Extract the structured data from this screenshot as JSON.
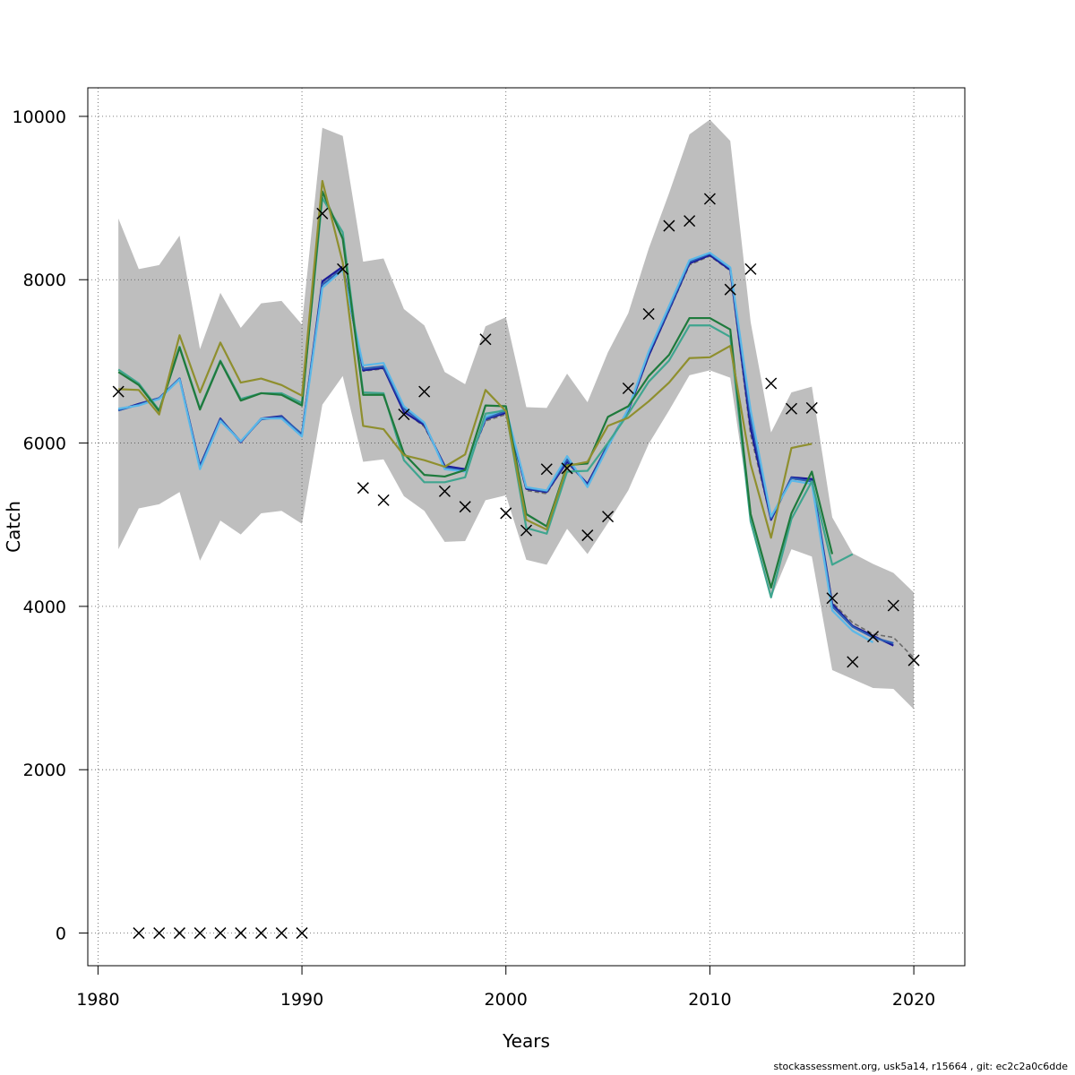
{
  "chart_data": {
    "type": "line",
    "xlabel": "Years",
    "ylabel": "Catch",
    "xlim": [
      1979.5,
      2022.5
    ],
    "ylim": [
      -400,
      10350
    ],
    "xticks": [
      1980,
      1990,
      2000,
      2010,
      2020
    ],
    "yticks": [
      0,
      2000,
      4000,
      6000,
      8000,
      10000
    ],
    "grid": true,
    "band": {
      "color": "#bebebe",
      "x": [
        1981,
        1982,
        1983,
        1984,
        1985,
        1986,
        1987,
        1988,
        1989,
        1990,
        1991,
        1992,
        1993,
        1994,
        1995,
        1996,
        1997,
        1998,
        1999,
        2000,
        2001,
        2002,
        2003,
        2004,
        2005,
        2006,
        2007,
        2008,
        2009,
        2010,
        2011,
        2012,
        2013,
        2014,
        2015,
        2016,
        2017,
        2018,
        2019,
        2020
      ],
      "upper": [
        8750,
        8130,
        8180,
        8540,
        7150,
        7840,
        7410,
        7710,
        7740,
        7450,
        9860,
        9760,
        8220,
        8260,
        7640,
        7440,
        6870,
        6720,
        7430,
        7540,
        6440,
        6430,
        6850,
        6500,
        7110,
        7590,
        8380,
        9060,
        9780,
        9960,
        9700,
        7480,
        6130,
        6620,
        6690,
        5090,
        4650,
        4520,
        4410,
        4170
      ],
      "lower": [
        4700,
        5200,
        5250,
        5400,
        4560,
        5050,
        4880,
        5140,
        5170,
        5010,
        6470,
        6820,
        5770,
        5800,
        5350,
        5170,
        4790,
        4800,
        5300,
        5360,
        4570,
        4510,
        4950,
        4640,
        5020,
        5420,
        5990,
        6400,
        6830,
        6890,
        6800,
        5110,
        4100,
        4700,
        4610,
        3220,
        3110,
        3000,
        2990,
        2740
      ]
    },
    "series": [
      {
        "color": "#6b6b6b",
        "dashed": true,
        "x": [
          1981,
          1982,
          1983,
          1984,
          1985,
          1986,
          1987,
          1988,
          1989,
          1990,
          1991,
          1992,
          1993,
          1994,
          1995,
          1996,
          1997,
          1998,
          1999,
          2000,
          2001,
          2002,
          2003,
          2004,
          2005,
          2006,
          2007,
          2008,
          2009,
          2010,
          2011,
          2012,
          2013,
          2014,
          2015,
          2016,
          2017,
          2018,
          2019,
          2020
        ],
        "values": [
          6400,
          6480,
          6550,
          6780,
          5720,
          6290,
          6010,
          6290,
          6330,
          6100,
          7970,
          8150,
          6880,
          6910,
          6390,
          6200,
          5720,
          5670,
          6270,
          6350,
          5420,
          5380,
          5780,
          5490,
          5960,
          6390,
          7060,
          7620,
          8180,
          8290,
          8110,
          6100,
          5060,
          5560,
          5540,
          4050,
          3800,
          3660,
          3620,
          3370
        ]
      },
      {
        "color": "#1a1a99",
        "x": [
          1981,
          1982,
          1983,
          1984,
          1985,
          1986,
          1987,
          1988,
          1989,
          1990,
          1991,
          1992,
          1993,
          1994,
          1995,
          1996,
          1997,
          1998,
          1999,
          2000,
          2001,
          2002,
          2003,
          2004,
          2005,
          2006,
          2007,
          2008,
          2009,
          2010,
          2011,
          2012,
          2013,
          2014,
          2015,
          2016,
          2017,
          2018,
          2019
        ],
        "values": [
          6400,
          6480,
          6550,
          6790,
          5720,
          6300,
          6010,
          6300,
          6330,
          6100,
          7980,
          8160,
          6890,
          6920,
          6380,
          6220,
          5720,
          5680,
          6290,
          6370,
          5440,
          5400,
          5770,
          5500,
          5980,
          6400,
          7070,
          7630,
          8200,
          8300,
          8120,
          6180,
          5060,
          5580,
          5560,
          4030,
          3760,
          3640,
          3520
        ]
      },
      {
        "color": "#2c5fb5",
        "x": [
          1981,
          1982,
          1983,
          1984,
          1985,
          1986,
          1987,
          1988,
          1989,
          1990,
          1991,
          1992,
          1993,
          1994,
          1995,
          1996,
          1997,
          1998,
          1999,
          2000,
          2001,
          2002,
          2003,
          2004,
          2005,
          2006,
          2007,
          2008,
          2009,
          2010,
          2011,
          2012,
          2013,
          2014,
          2015,
          2016,
          2017,
          2018,
          2019
        ],
        "values": [
          6400,
          6470,
          6550,
          6790,
          5710,
          6290,
          6020,
          6290,
          6320,
          6110,
          7940,
          8130,
          6910,
          6940,
          6420,
          6240,
          5700,
          5660,
          6300,
          6390,
          5450,
          5410,
          5800,
          5480,
          5970,
          6410,
          7100,
          7650,
          8220,
          8320,
          8140,
          6300,
          5080,
          5570,
          5530,
          4000,
          3750,
          3620,
          3550
        ]
      },
      {
        "color": "#5bb8e8",
        "x": [
          1981,
          1982,
          1983,
          1984,
          1985,
          1986,
          1987,
          1988,
          1989,
          1990,
          1991,
          1992,
          1993,
          1994,
          1995,
          1996,
          1997,
          1998,
          1999,
          2000,
          2001,
          2002,
          2003,
          2004,
          2005,
          2006,
          2007,
          2008,
          2009,
          2010,
          2011,
          2012,
          2013,
          2014,
          2015,
          2016,
          2017,
          2018
        ],
        "values": [
          6420,
          6460,
          6540,
          6780,
          5680,
          6270,
          6020,
          6300,
          6300,
          6080,
          7900,
          8120,
          6950,
          6980,
          6450,
          6250,
          5680,
          5650,
          6320,
          6420,
          5460,
          5420,
          5840,
          5460,
          5950,
          6420,
          7120,
          7680,
          8240,
          8330,
          8150,
          6400,
          5100,
          5540,
          5500,
          3950,
          3700,
          3560
        ]
      },
      {
        "color": "#3fa58f",
        "x": [
          1981,
          1982,
          1983,
          1984,
          1985,
          1986,
          1987,
          1988,
          1989,
          1990,
          1991,
          1992,
          1993,
          1994,
          1995,
          1996,
          1997,
          1998,
          1999,
          2000,
          2001,
          2002,
          2003,
          2004,
          2005,
          2006,
          2007,
          2008,
          2009,
          2010,
          2011,
          2012,
          2013,
          2014,
          2015,
          2016,
          2017
        ],
        "values": [
          6900,
          6730,
          6400,
          7180,
          6420,
          7010,
          6540,
          6610,
          6610,
          6490,
          9000,
          8580,
          6620,
          6610,
          5790,
          5520,
          5520,
          5580,
          6360,
          6400,
          4960,
          4890,
          5650,
          5660,
          6000,
          6360,
          6750,
          7010,
          7440,
          7440,
          7300,
          5040,
          4110,
          5070,
          5530,
          4510,
          4640
        ]
      },
      {
        "color": "#1e7a3c",
        "x": [
          1981,
          1982,
          1983,
          1984,
          1985,
          1986,
          1987,
          1988,
          1989,
          1990,
          1991,
          1992,
          1993,
          1994,
          1995,
          1996,
          1997,
          1998,
          1999,
          2000,
          2001,
          2002,
          2003,
          2004,
          2005,
          2006,
          2007,
          2008,
          2009,
          2010,
          2011,
          2012,
          2013,
          2014,
          2015,
          2016
        ],
        "values": [
          6870,
          6710,
          6390,
          7170,
          6410,
          7000,
          6520,
          6610,
          6590,
          6460,
          9080,
          8500,
          6590,
          6590,
          5870,
          5610,
          5590,
          5670,
          6460,
          6450,
          5130,
          4980,
          5730,
          5750,
          6320,
          6450,
          6820,
          7080,
          7530,
          7530,
          7390,
          5130,
          4230,
          5140,
          5650,
          4640
        ]
      },
      {
        "color": "#8f8f2e",
        "x": [
          1981,
          1982,
          1983,
          1984,
          1985,
          1986,
          1987,
          1988,
          1989,
          1990,
          1991,
          1992,
          1993,
          1994,
          1995,
          1996,
          1997,
          1998,
          1999,
          2000,
          2001,
          2002,
          2003,
          2004,
          2005,
          2006,
          2007,
          2008,
          2009,
          2010,
          2011,
          2012,
          2013,
          2014,
          2015
        ],
        "values": [
          6660,
          6650,
          6350,
          7320,
          6620,
          7230,
          6740,
          6790,
          6710,
          6580,
          9210,
          8210,
          6210,
          6170,
          5850,
          5790,
          5710,
          5860,
          6650,
          6390,
          5060,
          4940,
          5720,
          5770,
          6210,
          6310,
          6510,
          6740,
          7040,
          7050,
          7190,
          5740,
          4840,
          5940,
          5990
        ]
      }
    ],
    "observations": {
      "marker": "×",
      "x": [
        1981,
        1982,
        1983,
        1984,
        1985,
        1986,
        1987,
        1988,
        1989,
        1990,
        1991,
        1992,
        1993,
        1994,
        1995,
        1996,
        1997,
        1998,
        1999,
        2000,
        2001,
        2002,
        2003,
        2004,
        2005,
        2006,
        2007,
        2008,
        2009,
        2010,
        2011,
        2012,
        2013,
        2014,
        2015,
        2016,
        2017,
        2018,
        2019,
        2020
      ],
      "values": [
        6630,
        0,
        0,
        0,
        0,
        0,
        0,
        0,
        0,
        0,
        8810,
        8130,
        5450,
        5300,
        6350,
        6630,
        5410,
        5220,
        7270,
        5140,
        4930,
        5680,
        5690,
        4870,
        5100,
        6670,
        7580,
        8660,
        8720,
        8990,
        7880,
        8130,
        6730,
        6420,
        6430,
        4100,
        3320,
        3630,
        4010,
        3340
      ]
    }
  },
  "footer": {
    "text": "stockassessment.org, usk5a14, r15664 , git: ec2c2a0c6dde"
  }
}
